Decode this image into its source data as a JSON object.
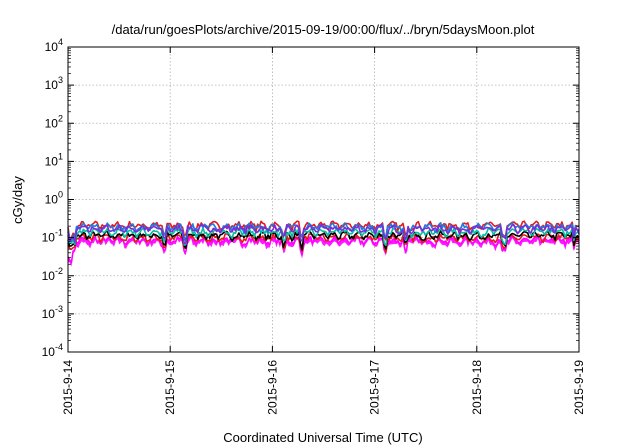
{
  "chart_data": {
    "type": "line",
    "title": "/data/run/goesPlots/archive/2015-09-19/00:00/flux/../bryn/5daysMoon.plot",
    "xlabel": "Coordinated Universal Time (UTC)",
    "ylabel": "cGy/day",
    "x_ticks": [
      "2015-9-14",
      "2015-9-15",
      "2015-9-16",
      "2015-9-17",
      "2015-9-18",
      "2015-9-19"
    ],
    "y_scale": "log",
    "y_ticks": [
      {
        "base": "10",
        "exp": "-4"
      },
      {
        "base": "10",
        "exp": "-3"
      },
      {
        "base": "10",
        "exp": "-2"
      },
      {
        "base": "10",
        "exp": "-1"
      },
      {
        "base": "10",
        "exp": "0"
      },
      {
        "base": "10",
        "exp": "1"
      },
      {
        "base": "10",
        "exp": "2"
      },
      {
        "base": "10",
        "exp": "3"
      },
      {
        "base": "10",
        "exp": "4"
      }
    ],
    "ylim": [
      0.0001,
      10000
    ],
    "xlim_days": [
      0,
      5
    ],
    "grid": true,
    "series": [
      {
        "color": "#ff00ff",
        "base": 0.085,
        "fill_low": true
      },
      {
        "color": "#e41a1c",
        "base": 0.1
      },
      {
        "color": "#000000",
        "base": 0.115
      },
      {
        "color": "#00c0a0",
        "base": 0.14
      },
      {
        "color": "#e41a1c",
        "base": 0.21
      },
      {
        "color": "#1e7be0",
        "base": 0.19
      },
      {
        "color": "#7b2cd6",
        "base": 0.17
      }
    ]
  }
}
